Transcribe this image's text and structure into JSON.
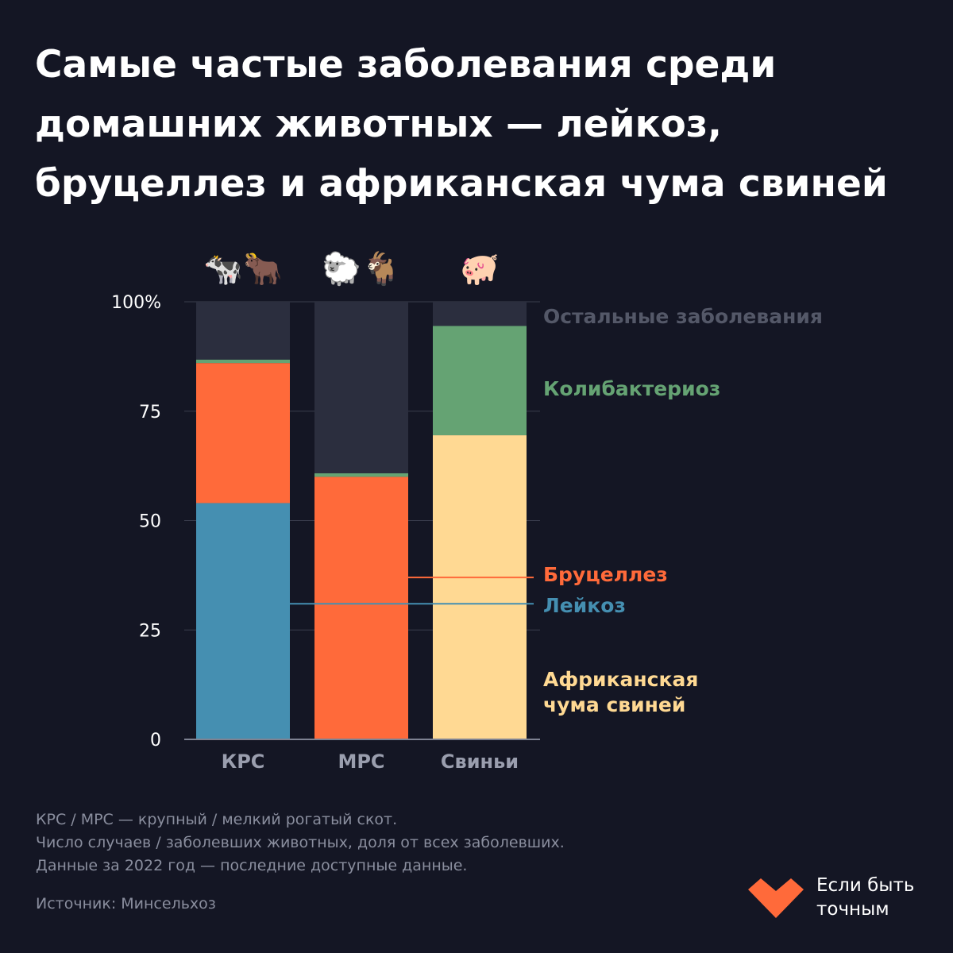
{
  "title_lines": [
    "Самые частые заболевания среди",
    "домашних животных — лейкоз,",
    "бруцеллез и африканская чума свиней"
  ],
  "chart_data": {
    "type": "bar",
    "stacked": true,
    "categories": [
      "КРС",
      "МРС",
      "Свиньи"
    ],
    "category_icons": [
      "🐄🐂",
      "🐑🐐",
      "🐖"
    ],
    "ylim": [
      0,
      100
    ],
    "yticks": [
      0,
      25,
      50,
      75,
      100
    ],
    "ytick_labels": [
      "0",
      "25",
      "50",
      "75",
      "100%"
    ],
    "series": [
      {
        "name": "Лейкоз",
        "color": "#458fb1",
        "values": [
          54,
          0,
          0
        ]
      },
      {
        "name": "Бруцеллез",
        "color": "#ff6a3a",
        "values": [
          32,
          60,
          0
        ]
      },
      {
        "name": "Африканская чума свиней",
        "color": "#ffd993",
        "values": [
          0,
          0,
          69.5
        ]
      },
      {
        "name": "Колибактериоз",
        "color": "#65a373",
        "values": [
          0.8,
          0.8,
          25
        ]
      },
      {
        "name": "Остальные заболевания",
        "color": "#2b2e3e",
        "values": [
          13.2,
          39.2,
          5.5
        ]
      }
    ],
    "legend": [
      {
        "label": "Остальные заболевания",
        "color": "#545868"
      },
      {
        "label": "Колибактериоз",
        "color": "#65a373"
      },
      {
        "label": "Бруцеллез",
        "color": "#ff6a3a"
      },
      {
        "label": "Лейкоз",
        "color": "#458fb1"
      },
      {
        "label": "Африканская\nчума свиней",
        "color": "#ffd993"
      }
    ]
  },
  "notes": [
    "КРС / МРС — крупный / мелкий рогатый скот.",
    "Число случаев / заболевших животных, доля от всех заболевших.",
    "Данные за 2022 год — последние доступные данные."
  ],
  "source": "Источник: Минсельхоз",
  "brand": {
    "line1": "Если быть",
    "line2": "точным",
    "color": "#ff6a3a"
  }
}
